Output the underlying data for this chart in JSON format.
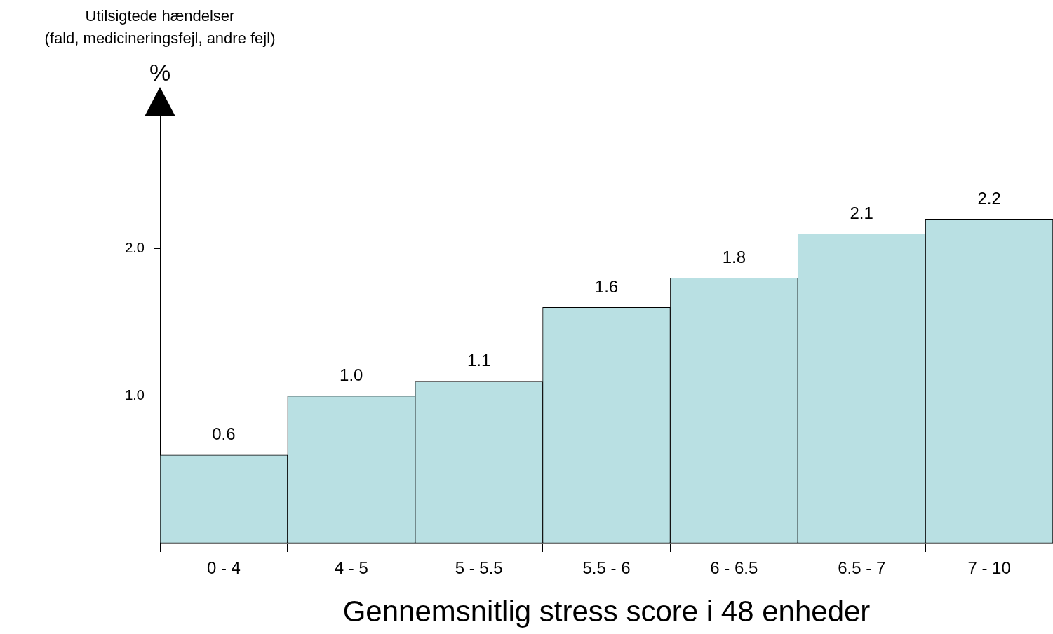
{
  "chart_data": {
    "type": "bar",
    "xlabel": "Gennemsnitlig stress score i 48 enheder",
    "ylabel": "Utilsigtede hændelser\n(fald, medicineringsfejl, andre fejl)\n%",
    "categories": [
      "0 - 4",
      "4 - 5",
      "5 - 5.5",
      "5.5 - 6",
      "6 - 6.5",
      "6.5 - 7",
      "7 - 10"
    ],
    "values": [
      0.6,
      1.0,
      1.1,
      1.6,
      1.8,
      2.1,
      2.2
    ],
    "color": "#b9e0e3",
    "ylim": [
      0,
      2.9
    ],
    "yticks": [
      {
        "value": 0,
        "label": null
      },
      {
        "value": 1,
        "label": "1.0"
      },
      {
        "value": 2,
        "label": "2.0"
      }
    ],
    "value_labels": [
      "0.6",
      "1.0",
      "1.1",
      "1.6",
      "1.8",
      "2.1",
      "2.2"
    ],
    "grid": false,
    "legend": false
  }
}
